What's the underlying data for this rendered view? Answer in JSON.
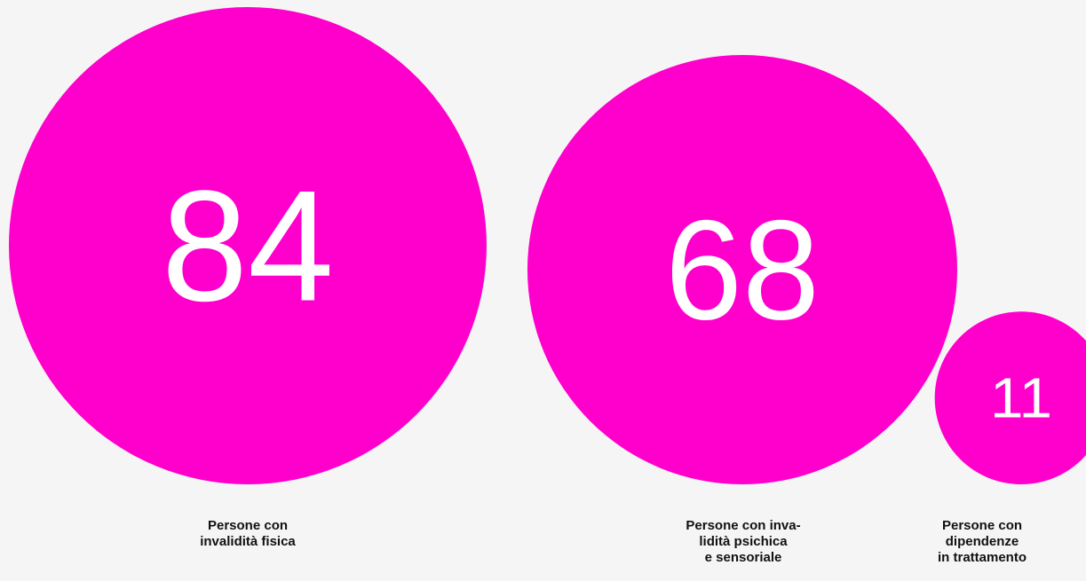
{
  "chart_data": {
    "type": "bubble",
    "colors": {
      "bubble": "#ff00cc",
      "inside_text": "#ffffff",
      "outside_text": "#ff00cc",
      "category_text": "#111111",
      "background": "#f5f5f5"
    },
    "series": [
      {
        "value": 84,
        "label": "Persone con\ninvalidità fisica"
      },
      {
        "value": 68,
        "label": "Persone con inva-\nlidità psichica\ne sensoriale"
      },
      {
        "value": 11,
        "label": "Persone con\ndipendenze\nin trattamento"
      }
    ]
  }
}
